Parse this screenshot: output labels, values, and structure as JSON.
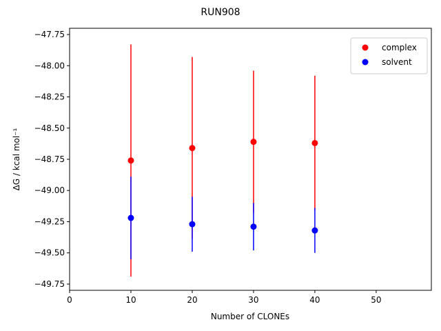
{
  "chart_data": {
    "type": "scatter",
    "title": "RUN908",
    "xlabel": "Number of CLONEs",
    "ylabel": "ΔG / kcal mol⁻¹",
    "xlim": [
      0,
      59
    ],
    "ylim": [
      -49.8,
      -47.7
    ],
    "xticks": [
      0,
      10,
      20,
      30,
      40,
      50
    ],
    "yticks": [
      -47.75,
      -48.0,
      -48.25,
      -48.5,
      -48.75,
      -49.0,
      -49.25,
      -49.5,
      -49.75
    ],
    "xtick_labels": [
      "0",
      "10",
      "20",
      "30",
      "40",
      "50"
    ],
    "ytick_labels": [
      "−47.75",
      "−48.00",
      "−48.25",
      "−48.50",
      "−48.75",
      "−49.00",
      "−49.25",
      "−49.50",
      "−49.75"
    ],
    "grid": false,
    "legend_position": "top-right",
    "series": [
      {
        "name": "complex",
        "color": "#ff0000",
        "x": [
          10,
          20,
          30,
          40
        ],
        "y": [
          -48.76,
          -48.66,
          -48.61,
          -48.62
        ],
        "error": [
          0.93,
          0.73,
          0.57,
          0.54
        ]
      },
      {
        "name": "solvent",
        "color": "#0000ff",
        "x": [
          10,
          20,
          30,
          40
        ],
        "y": [
          -49.22,
          -49.27,
          -49.29,
          -49.32
        ],
        "error": [
          0.33,
          0.22,
          0.19,
          0.18
        ]
      }
    ]
  }
}
